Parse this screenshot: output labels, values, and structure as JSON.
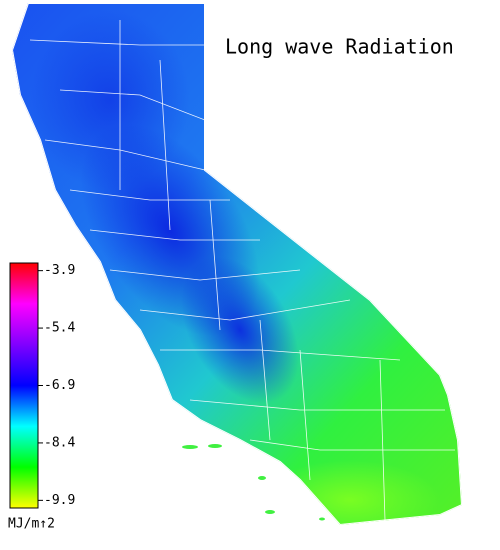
{
  "chart_data": {
    "type": "map",
    "title": "Long wave Radiation",
    "colorbar": {
      "label": "MJ/m↑2",
      "clim": [
        -3.7,
        -10.1
      ],
      "ticks": [
        -3.9,
        -5.4,
        -6.9,
        -8.4,
        -9.9
      ],
      "colormap": [
        "#ff0000",
        "#ff00ff",
        "#8000ff",
        "#0000ff",
        "#00ffff",
        "#00ff00",
        "#ffff00"
      ]
    }
  }
}
